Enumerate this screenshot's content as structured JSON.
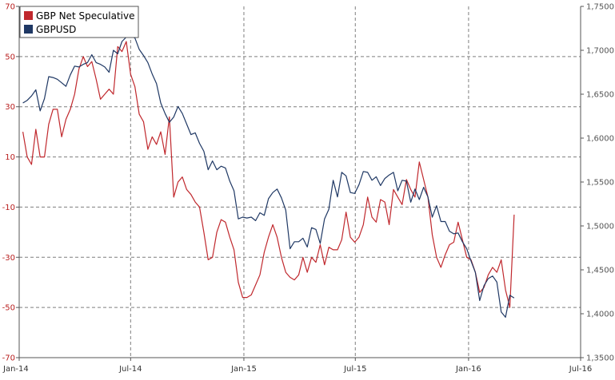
{
  "colors": {
    "gbp_net_speculative": "#c0282d",
    "gbpusd": "#1f3864",
    "grid": "#7f7f7f",
    "left_axis_labels": "#b81d1d",
    "right_axis_labels": "#555555"
  },
  "legend": {
    "placement": "top-left",
    "items": [
      "GBP Net Speculative",
      "GBPUSD"
    ]
  },
  "chart_data": {
    "type": "line",
    "x_ticks": [
      "Jan-14",
      "Jul-14",
      "Jan-15",
      "Jul-15",
      "Jan-16",
      "Jul-16"
    ],
    "x_range": [
      "2014-01-01",
      "2016-07-01"
    ],
    "y_left": {
      "range": [
        -70,
        70
      ],
      "ticks": [
        "70",
        "50",
        "30",
        "10",
        "-10",
        "-30",
        "-50",
        "-70"
      ]
    },
    "y_right": {
      "range": [
        1.35,
        1.75
      ],
      "ticks": [
        "1,7500",
        "1,7000",
        "1,6500",
        "1,6000",
        "1,5500",
        "1,5000",
        "1,4500",
        "1,4000",
        "1,3500"
      ]
    },
    "grid": true,
    "series": [
      {
        "name": "GBP Net Speculative",
        "axis": "left",
        "points": [
          [
            "2014-01-07",
            20
          ],
          [
            "2014-01-14",
            10
          ],
          [
            "2014-01-21",
            7
          ],
          [
            "2014-01-28",
            21
          ],
          [
            "2014-02-04",
            10
          ],
          [
            "2014-02-11",
            10
          ],
          [
            "2014-02-18",
            23
          ],
          [
            "2014-02-25",
            29
          ],
          [
            "2014-03-04",
            29
          ],
          [
            "2014-03-11",
            18
          ],
          [
            "2014-03-18",
            25
          ],
          [
            "2014-03-25",
            29
          ],
          [
            "2014-04-01",
            35
          ],
          [
            "2014-04-08",
            45
          ],
          [
            "2014-04-15",
            50
          ],
          [
            "2014-04-22",
            46
          ],
          [
            "2014-04-29",
            48
          ],
          [
            "2014-05-06",
            41
          ],
          [
            "2014-05-13",
            33
          ],
          [
            "2014-05-20",
            35
          ],
          [
            "2014-05-27",
            37
          ],
          [
            "2014-06-03",
            35
          ],
          [
            "2014-06-10",
            54
          ],
          [
            "2014-06-17",
            52
          ],
          [
            "2014-06-24",
            56
          ],
          [
            "2014-07-01",
            43
          ],
          [
            "2014-07-08",
            38
          ],
          [
            "2014-07-15",
            27
          ],
          [
            "2014-07-22",
            24
          ],
          [
            "2014-07-29",
            13
          ],
          [
            "2014-08-05",
            18
          ],
          [
            "2014-08-12",
            15
          ],
          [
            "2014-08-19",
            20
          ],
          [
            "2014-08-26",
            11
          ],
          [
            "2014-09-02",
            26
          ],
          [
            "2014-09-09",
            -6
          ],
          [
            "2014-09-16",
            0
          ],
          [
            "2014-09-23",
            2
          ],
          [
            "2014-09-30",
            -3
          ],
          [
            "2014-10-07",
            -5
          ],
          [
            "2014-10-14",
            -8
          ],
          [
            "2014-10-21",
            -10
          ],
          [
            "2014-10-28",
            -20
          ],
          [
            "2014-11-04",
            -31
          ],
          [
            "2014-11-11",
            -30
          ],
          [
            "2014-11-18",
            -20
          ],
          [
            "2014-11-25",
            -15
          ],
          [
            "2014-12-02",
            -16
          ],
          [
            "2014-12-09",
            -22
          ],
          [
            "2014-12-16",
            -27
          ],
          [
            "2014-12-23",
            -40
          ],
          [
            "2014-12-30",
            -46
          ],
          [
            "2015-01-06",
            -46
          ],
          [
            "2015-01-13",
            -45
          ],
          [
            "2015-01-20",
            -41
          ],
          [
            "2015-01-27",
            -37
          ],
          [
            "2015-02-03",
            -28
          ],
          [
            "2015-02-10",
            -22
          ],
          [
            "2015-02-17",
            -17
          ],
          [
            "2015-02-24",
            -22
          ],
          [
            "2015-03-03",
            -30
          ],
          [
            "2015-03-10",
            -36
          ],
          [
            "2015-03-17",
            -38
          ],
          [
            "2015-03-24",
            -39
          ],
          [
            "2015-03-31",
            -37
          ],
          [
            "2015-04-07",
            -30
          ],
          [
            "2015-04-14",
            -36
          ],
          [
            "2015-04-21",
            -30
          ],
          [
            "2015-04-28",
            -32
          ],
          [
            "2015-05-05",
            -25
          ],
          [
            "2015-05-12",
            -33
          ],
          [
            "2015-05-19",
            -26
          ],
          [
            "2015-05-26",
            -27
          ],
          [
            "2015-06-02",
            -27
          ],
          [
            "2015-06-09",
            -23
          ],
          [
            "2015-06-16",
            -12
          ],
          [
            "2015-06-23",
            -22
          ],
          [
            "2015-06-30",
            -24
          ],
          [
            "2015-07-07",
            -22
          ],
          [
            "2015-07-14",
            -17
          ],
          [
            "2015-07-21",
            -6
          ],
          [
            "2015-07-28",
            -14
          ],
          [
            "2015-08-04",
            -16
          ],
          [
            "2015-08-11",
            -7
          ],
          [
            "2015-08-18",
            -8
          ],
          [
            "2015-08-25",
            -17
          ],
          [
            "2015-09-01",
            -3
          ],
          [
            "2015-09-08",
            -6
          ],
          [
            "2015-09-15",
            -9
          ],
          [
            "2015-09-22",
            1
          ],
          [
            "2015-09-29",
            -3
          ],
          [
            "2015-10-06",
            -6
          ],
          [
            "2015-10-13",
            8
          ],
          [
            "2015-10-20",
            1
          ],
          [
            "2015-10-27",
            -6
          ],
          [
            "2015-11-03",
            -21
          ],
          [
            "2015-11-10",
            -30
          ],
          [
            "2015-11-17",
            -34
          ],
          [
            "2015-11-24",
            -29
          ],
          [
            "2015-12-01",
            -25
          ],
          [
            "2015-12-08",
            -24
          ],
          [
            "2015-12-15",
            -16
          ],
          [
            "2015-12-22",
            -23
          ],
          [
            "2015-12-29",
            -30
          ],
          [
            "2016-01-05",
            -31
          ],
          [
            "2016-01-12",
            -36
          ],
          [
            "2016-01-19",
            -44
          ],
          [
            "2016-01-26",
            -42
          ],
          [
            "2016-02-02",
            -37
          ],
          [
            "2016-02-09",
            -34
          ],
          [
            "2016-02-16",
            -36
          ],
          [
            "2016-02-23",
            -31
          ],
          [
            "2016-03-01",
            -43
          ],
          [
            "2016-03-08",
            -50
          ],
          [
            "2016-03-15",
            -13
          ]
        ]
      },
      {
        "name": "GBPUSD",
        "axis": "right",
        "points": [
          [
            "2014-01-07",
            1.64
          ],
          [
            "2014-01-14",
            1.643
          ],
          [
            "2014-01-21",
            1.648
          ],
          [
            "2014-01-28",
            1.655
          ],
          [
            "2014-02-04",
            1.631
          ],
          [
            "2014-02-11",
            1.645
          ],
          [
            "2014-02-18",
            1.67
          ],
          [
            "2014-02-25",
            1.669
          ],
          [
            "2014-03-04",
            1.667
          ],
          [
            "2014-03-11",
            1.663
          ],
          [
            "2014-03-18",
            1.659
          ],
          [
            "2014-03-25",
            1.672
          ],
          [
            "2014-04-01",
            1.682
          ],
          [
            "2014-04-08",
            1.681
          ],
          [
            "2014-04-15",
            1.684
          ],
          [
            "2014-04-22",
            1.686
          ],
          [
            "2014-04-29",
            1.695
          ],
          [
            "2014-05-06",
            1.686
          ],
          [
            "2014-05-13",
            1.684
          ],
          [
            "2014-05-20",
            1.681
          ],
          [
            "2014-05-27",
            1.675
          ],
          [
            "2014-06-03",
            1.7
          ],
          [
            "2014-06-10",
            1.696
          ],
          [
            "2014-06-17",
            1.71
          ],
          [
            "2014-06-24",
            1.715
          ],
          [
            "2014-07-01",
            1.716
          ],
          [
            "2014-07-08",
            1.714
          ],
          [
            "2014-07-15",
            1.701
          ],
          [
            "2014-07-22",
            1.694
          ],
          [
            "2014-07-29",
            1.686
          ],
          [
            "2014-08-05",
            1.673
          ],
          [
            "2014-08-12",
            1.662
          ],
          [
            "2014-08-19",
            1.64
          ],
          [
            "2014-08-26",
            1.628
          ],
          [
            "2014-09-02",
            1.618
          ],
          [
            "2014-09-09",
            1.624
          ],
          [
            "2014-09-16",
            1.636
          ],
          [
            "2014-09-23",
            1.628
          ],
          [
            "2014-09-30",
            1.616
          ],
          [
            "2014-10-07",
            1.604
          ],
          [
            "2014-10-14",
            1.606
          ],
          [
            "2014-10-21",
            1.594
          ],
          [
            "2014-10-28",
            1.585
          ],
          [
            "2014-11-04",
            1.564
          ],
          [
            "2014-11-11",
            1.574
          ],
          [
            "2014-11-18",
            1.564
          ],
          [
            "2014-11-25",
            1.568
          ],
          [
            "2014-12-02",
            1.566
          ],
          [
            "2014-12-09",
            1.551
          ],
          [
            "2014-12-16",
            1.54
          ],
          [
            "2014-12-23",
            1.508
          ],
          [
            "2014-12-30",
            1.51
          ],
          [
            "2015-01-06",
            1.509
          ],
          [
            "2015-01-13",
            1.51
          ],
          [
            "2015-01-20",
            1.506
          ],
          [
            "2015-01-27",
            1.515
          ],
          [
            "2015-02-03",
            1.512
          ],
          [
            "2015-02-10",
            1.531
          ],
          [
            "2015-02-17",
            1.538
          ],
          [
            "2015-02-24",
            1.542
          ],
          [
            "2015-03-03",
            1.532
          ],
          [
            "2015-03-10",
            1.518
          ],
          [
            "2015-03-17",
            1.474
          ],
          [
            "2015-03-24",
            1.482
          ],
          [
            "2015-03-31",
            1.482
          ],
          [
            "2015-04-07",
            1.486
          ],
          [
            "2015-04-14",
            1.476
          ],
          [
            "2015-04-21",
            1.498
          ],
          [
            "2015-04-28",
            1.496
          ],
          [
            "2015-05-05",
            1.48
          ],
          [
            "2015-05-12",
            1.508
          ],
          [
            "2015-05-19",
            1.519
          ],
          [
            "2015-05-26",
            1.552
          ],
          [
            "2015-06-02",
            1.533
          ],
          [
            "2015-06-09",
            1.561
          ],
          [
            "2015-06-16",
            1.557
          ],
          [
            "2015-06-23",
            1.538
          ],
          [
            "2015-06-30",
            1.537
          ],
          [
            "2015-07-07",
            1.547
          ],
          [
            "2015-07-14",
            1.562
          ],
          [
            "2015-07-21",
            1.561
          ],
          [
            "2015-07-28",
            1.552
          ],
          [
            "2015-08-04",
            1.556
          ],
          [
            "2015-08-11",
            1.546
          ],
          [
            "2015-08-18",
            1.554
          ],
          [
            "2015-08-25",
            1.558
          ],
          [
            "2015-09-01",
            1.561
          ],
          [
            "2015-09-08",
            1.54
          ],
          [
            "2015-09-15",
            1.552
          ],
          [
            "2015-09-22",
            1.551
          ],
          [
            "2015-09-29",
            1.527
          ],
          [
            "2015-10-06",
            1.542
          ],
          [
            "2015-10-13",
            1.53
          ],
          [
            "2015-10-20",
            1.544
          ],
          [
            "2015-10-27",
            1.533
          ],
          [
            "2015-11-03",
            1.51
          ],
          [
            "2015-11-10",
            1.523
          ],
          [
            "2015-11-17",
            1.505
          ],
          [
            "2015-11-24",
            1.505
          ],
          [
            "2015-12-01",
            1.494
          ],
          [
            "2015-12-08",
            1.491
          ],
          [
            "2015-12-15",
            1.492
          ],
          [
            "2015-12-22",
            1.482
          ],
          [
            "2015-12-29",
            1.474
          ],
          [
            "2016-01-05",
            1.46
          ],
          [
            "2016-01-12",
            1.447
          ],
          [
            "2016-01-19",
            1.415
          ],
          [
            "2016-01-26",
            1.432
          ],
          [
            "2016-02-02",
            1.44
          ],
          [
            "2016-02-09",
            1.443
          ],
          [
            "2016-02-16",
            1.436
          ],
          [
            "2016-02-23",
            1.402
          ],
          [
            "2016-03-01",
            1.396
          ],
          [
            "2016-03-08",
            1.421
          ],
          [
            "2016-03-15",
            1.418
          ]
        ]
      }
    ]
  }
}
